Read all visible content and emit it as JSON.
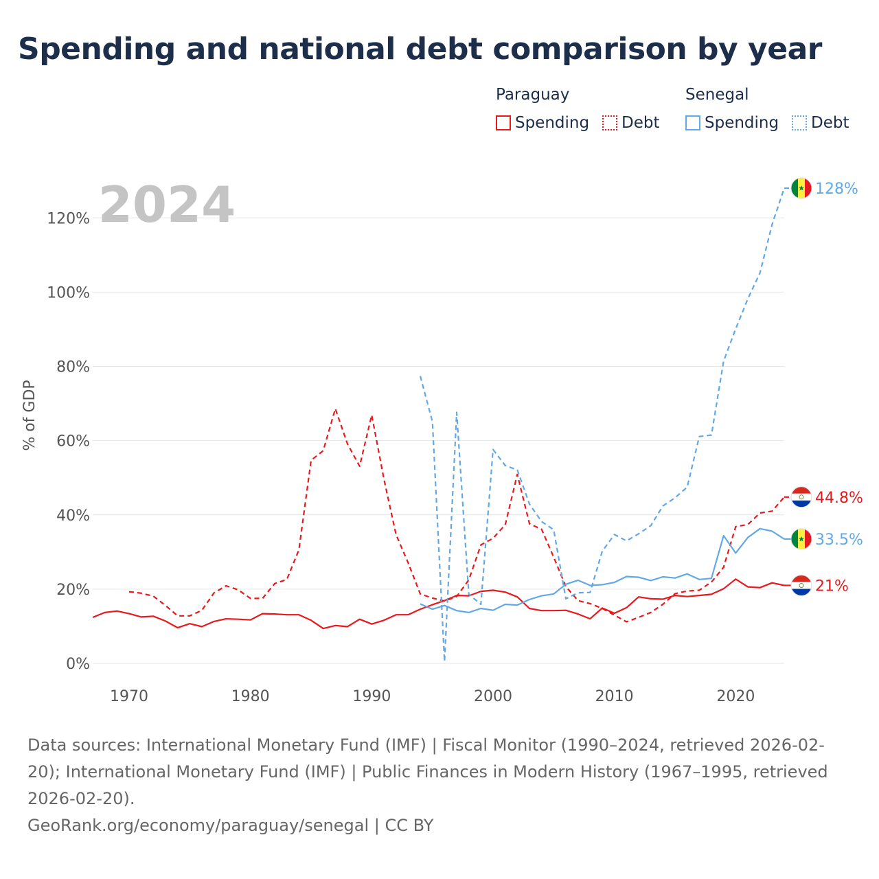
{
  "title": "Spending and national debt comparison by year",
  "legend": {
    "groups": [
      {
        "name": "Paraguay",
        "items": [
          {
            "label": "Spending"
          },
          {
            "label": "Debt"
          }
        ]
      },
      {
        "name": "Senegal",
        "items": [
          {
            "label": "Spending"
          },
          {
            "label": "Debt"
          }
        ]
      }
    ]
  },
  "footer": {
    "sources": "Data sources: International Monetary Fund (IMF) | Fiscal Monitor (1990–2024, retrieved 2026-02-20); International Monetary Fund (IMF) | Public Finances in Modern History (1967–1995, retrieved 2026-02-20).",
    "credit": "GeoRank.org/economy/paraguay/senegal | CC BY"
  },
  "colors": {
    "paraguay": "#e8191c",
    "senegal": "#62a8e5",
    "grid": "#e6e6e6",
    "year_watermark": "#c4c4c4"
  },
  "chart_data": {
    "type": "line",
    "year_label": "2024",
    "ylabel": "% of GDP",
    "xlim": [
      1967,
      2024
    ],
    "ylim": [
      0,
      128
    ],
    "yticks": [
      0,
      20,
      40,
      60,
      80,
      100,
      120
    ],
    "ytick_labels": [
      "0%",
      "20%",
      "40%",
      "60%",
      "80%",
      "100%",
      "120%"
    ],
    "xticks": [
      1970,
      1980,
      1990,
      2000,
      2010,
      2020
    ],
    "xtick_labels": [
      "1970",
      "1980",
      "1990",
      "2000",
      "2010",
      "2020"
    ],
    "series": [
      {
        "name": "Paraguay Spending",
        "country": "Paraguay",
        "dash": "solid",
        "color": "#e8191c",
        "end_label": "21%",
        "x": [
          1967,
          1968,
          1969,
          1970,
          1971,
          1972,
          1973,
          1974,
          1975,
          1976,
          1977,
          1978,
          1979,
          1980,
          1981,
          1982,
          1983,
          1984,
          1985,
          1986,
          1987,
          1988,
          1989,
          1990,
          1991,
          1992,
          1993,
          1994,
          1995,
          1996,
          1997,
          1998,
          1999,
          2000,
          2001,
          2002,
          2003,
          2004,
          2005,
          2006,
          2007,
          2008,
          2009,
          2010,
          2011,
          2012,
          2013,
          2014,
          2015,
          2016,
          2017,
          2018,
          2019,
          2020,
          2021,
          2022,
          2023,
          2024
        ],
        "y": [
          12.4,
          13.7,
          14.1,
          13.4,
          12.5,
          12.7,
          11.4,
          9.6,
          10.7,
          9.9,
          11.3,
          12.0,
          11.9,
          11.7,
          13.4,
          13.3,
          13.1,
          13.1,
          11.6,
          9.4,
          10.2,
          9.9,
          11.9,
          10.6,
          11.6,
          13.1,
          13.1,
          14.6,
          15.8,
          16.9,
          18.3,
          18.2,
          19.4,
          19.7,
          19.2,
          17.9,
          14.8,
          14.2,
          14.2,
          14.3,
          13.3,
          12.0,
          14.9,
          13.5,
          15.0,
          17.9,
          17.4,
          17.3,
          18.3,
          18.0,
          18.3,
          18.6,
          20.1,
          22.7,
          20.6,
          20.4,
          21.7,
          21.0
        ]
      },
      {
        "name": "Paraguay Debt",
        "country": "Paraguay",
        "dash": "dashed",
        "color": "#e8191c",
        "end_label": "44.8%",
        "x": [
          1970,
          1971,
          1972,
          1973,
          1974,
          1975,
          1976,
          1977,
          1978,
          1979,
          1980,
          1981,
          1982,
          1983,
          1984,
          1985,
          1986,
          1987,
          1988,
          1989,
          1990,
          1991,
          1992,
          1993,
          1994,
          1995,
          1996,
          1997,
          1998,
          1999,
          2000,
          2001,
          2002,
          2003,
          2004,
          2005,
          2006,
          2007,
          2008,
          2009,
          2010,
          2011,
          2012,
          2013,
          2014,
          2015,
          2016,
          2017,
          2018,
          2019,
          2020,
          2021,
          2022,
          2023,
          2024
        ],
        "y": [
          19.3,
          18.9,
          18.1,
          15.6,
          12.8,
          12.8,
          14.3,
          19.0,
          20.9,
          19.8,
          17.5,
          17.5,
          21.5,
          22.6,
          30.6,
          54.7,
          57.3,
          68.6,
          59.1,
          53.1,
          66.9,
          49.7,
          34.7,
          27.1,
          18.7,
          17.6,
          16.8,
          18.0,
          22.5,
          31.9,
          33.7,
          37.3,
          50.9,
          37.6,
          36.1,
          28.6,
          20.7,
          16.9,
          16.1,
          14.8,
          13.0,
          11.2,
          12.4,
          13.7,
          15.9,
          18.8,
          19.5,
          19.7,
          21.9,
          25.9,
          36.8,
          37.4,
          40.5,
          41.0,
          44.8
        ]
      },
      {
        "name": "Senegal Spending",
        "country": "Senegal",
        "dash": "solid",
        "color": "#62a8e5",
        "end_label": "33.5%",
        "x": [
          1994,
          1995,
          1996,
          1997,
          1998,
          1999,
          2000,
          2001,
          2002,
          2003,
          2004,
          2005,
          2006,
          2007,
          2008,
          2009,
          2010,
          2011,
          2012,
          2013,
          2014,
          2015,
          2016,
          2017,
          2018,
          2019,
          2020,
          2021,
          2022,
          2023,
          2024
        ],
        "y": [
          16.0,
          14.6,
          15.6,
          14.2,
          13.7,
          14.8,
          14.3,
          15.9,
          15.7,
          17.2,
          18.2,
          18.7,
          21.3,
          22.4,
          21.0,
          21.2,
          21.8,
          23.4,
          23.2,
          22.3,
          23.3,
          23.0,
          24.1,
          22.6,
          22.9,
          34.4,
          29.7,
          33.9,
          36.3,
          35.6,
          33.5
        ]
      },
      {
        "name": "Senegal Debt",
        "country": "Senegal",
        "dash": "dashed",
        "color": "#62a8e5",
        "end_label": "128%",
        "x": [
          1994,
          1995,
          1996,
          1997,
          1998,
          1999,
          2000,
          2001,
          2002,
          2003,
          2004,
          2005,
          2006,
          2007,
          2008,
          2009,
          2010,
          2011,
          2012,
          2013,
          2014,
          2015,
          2016,
          2017,
          2018,
          2019,
          2020,
          2021,
          2022,
          2023,
          2024
        ],
        "y": [
          77.4,
          65.1,
          0.5,
          67.6,
          18.6,
          15.9,
          57.6,
          53.3,
          52.1,
          42.9,
          38.2,
          36.0,
          17.4,
          19.0,
          19.1,
          30.2,
          34.7,
          33.0,
          34.9,
          37.1,
          42.4,
          44.6,
          47.5,
          61.1,
          61.5,
          81.4,
          90.1,
          98.2,
          105.2,
          118.2,
          128.0
        ]
      }
    ]
  }
}
